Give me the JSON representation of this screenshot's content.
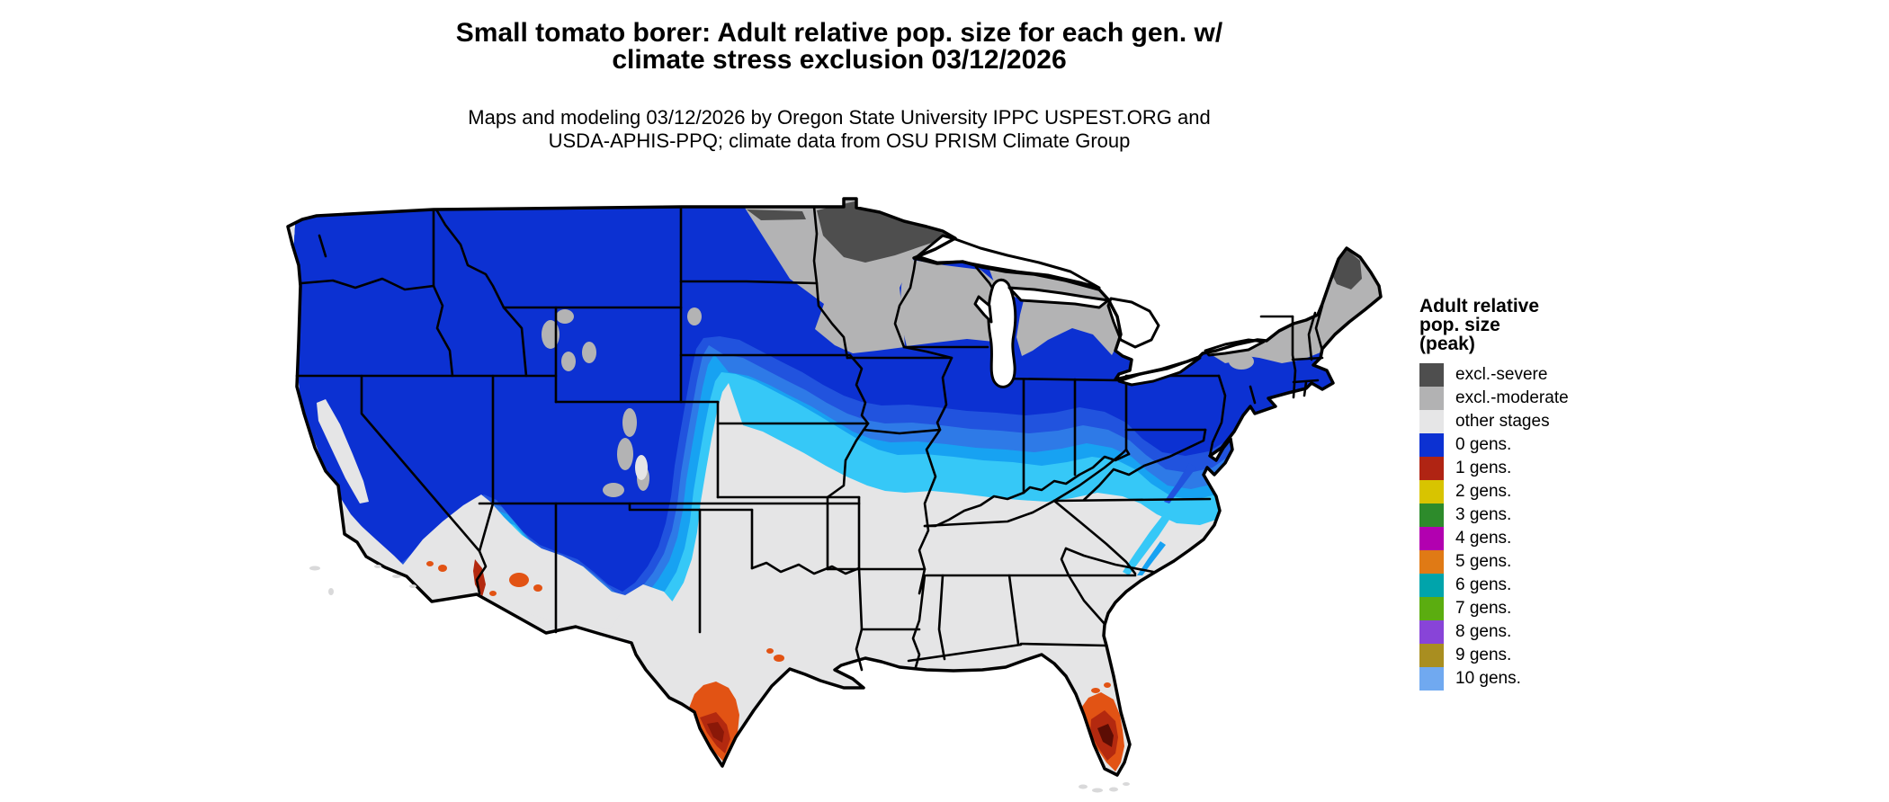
{
  "header": {
    "title_line1": "Small tomato borer: Adult relative pop. size for each gen. w/",
    "title_line2": "climate stress exclusion 03/12/2026",
    "subtitle_line1": "Maps and modeling 03/12/2026 by Oregon State University IPPC USPEST.ORG and",
    "subtitle_line2": "USDA-APHIS-PPQ; climate data from OSU PRISM Climate Group"
  },
  "legend": {
    "title_lines": [
      "Adult relative",
      "pop. size",
      "(peak)"
    ],
    "items": [
      {
        "label": "excl.-severe",
        "color": "#4e4e4e"
      },
      {
        "label": "excl.-moderate",
        "color": "#b2b2b3"
      },
      {
        "label": "other stages",
        "color": "#e6e6e7"
      },
      {
        "label": "0 gens.",
        "color": "#0c31d2"
      },
      {
        "label": "1 gens.",
        "color": "#b02413"
      },
      {
        "label": "2 gens.",
        "color": "#d8c400"
      },
      {
        "label": "3 gens.",
        "color": "#2d8b2b"
      },
      {
        "label": "4 gens.",
        "color": "#b200b0"
      },
      {
        "label": "5 gens.",
        "color": "#e07a15"
      },
      {
        "label": "6 gens.",
        "color": "#00a4ab"
      },
      {
        "label": "7 gens.",
        "color": "#5bad10"
      },
      {
        "label": "8 gens.",
        "color": "#8844d8"
      },
      {
        "label": "9 gens.",
        "color": "#a98e20"
      },
      {
        "label": "10 gens.",
        "color": "#70a9f0"
      }
    ]
  },
  "map": {
    "description": "CONUS map of adult relative population size by generation",
    "band_colors": {
      "peak_0_gens": "#0c31d2",
      "lower_pop_blues": [
        "#2153de",
        "#2e7ae7",
        "#17a2f2",
        "#36c8f7"
      ],
      "other_stages_base": "#e5e5e6",
      "excl_moderate": "#b3b3b4",
      "excl_severe": "#4e4e4e",
      "gen1_oranges_reds": [
        "#e25314",
        "#b3290f",
        "#8a1808",
        "#5c0d04"
      ]
    }
  }
}
